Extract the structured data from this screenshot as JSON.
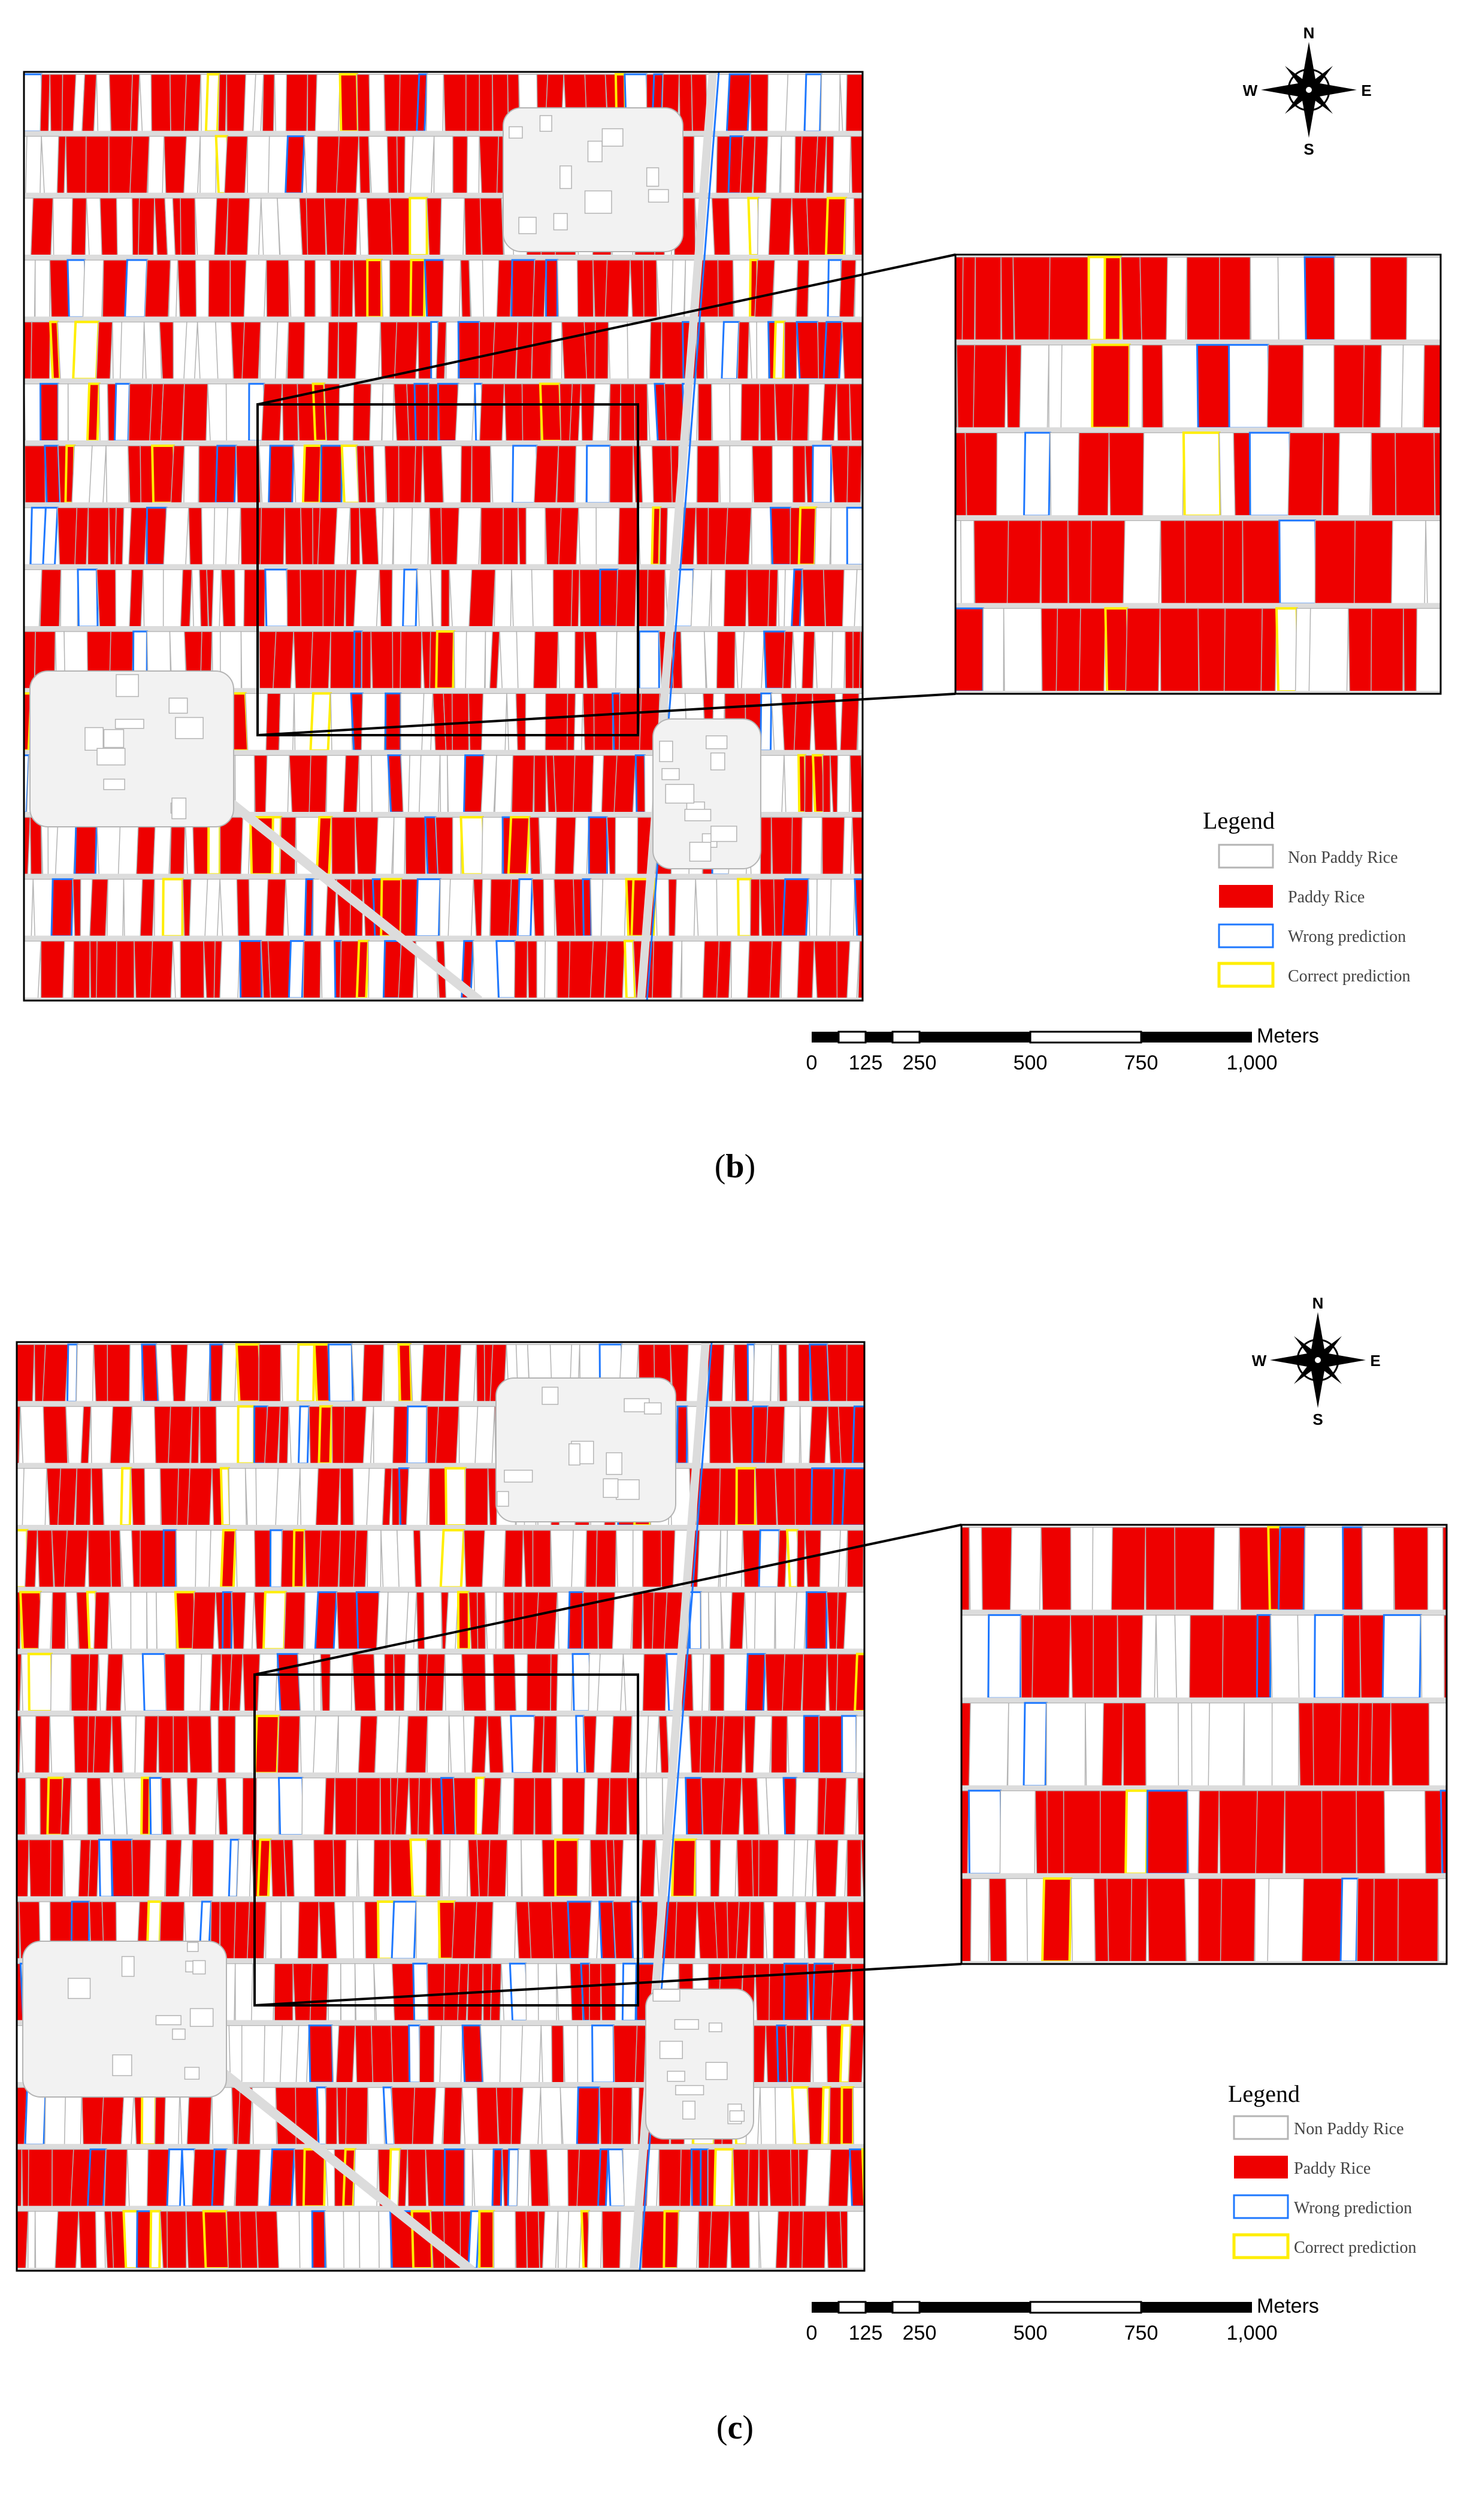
{
  "colors": {
    "paddy": "#ee0000",
    "non_paddy": "#ffffff",
    "road": "#dcdcdc",
    "parcel_line": "#b4b4b4",
    "wrong": "#1e78ff",
    "correct": "#ffee00",
    "frame": "#000000"
  },
  "icons": {
    "compass": "north-arrow-compass-icon"
  },
  "compass": {
    "n": "N",
    "s": "S",
    "e": "E",
    "w": "W"
  },
  "legend": {
    "title": "Legend",
    "items": [
      {
        "label": "Non Paddy Rice",
        "swatch": "non_paddy"
      },
      {
        "label": "Paddy Rice",
        "swatch": "paddy"
      },
      {
        "label": "Wrong prediction",
        "swatch": "wrong"
      },
      {
        "label": "Correct prediction",
        "swatch": "correct"
      }
    ]
  },
  "scale_bar": {
    "unit": "Meters",
    "ticks": [
      "0",
      "125",
      "250",
      "500",
      "750",
      "1,000"
    ]
  },
  "panels": [
    {
      "id": "b",
      "caption_open": "(",
      "caption_letter": "b",
      "caption_close": ")",
      "seed": 11
    },
    {
      "id": "c",
      "caption_open": "(",
      "caption_letter": "c",
      "caption_close": ")",
      "seed": 29
    }
  ]
}
